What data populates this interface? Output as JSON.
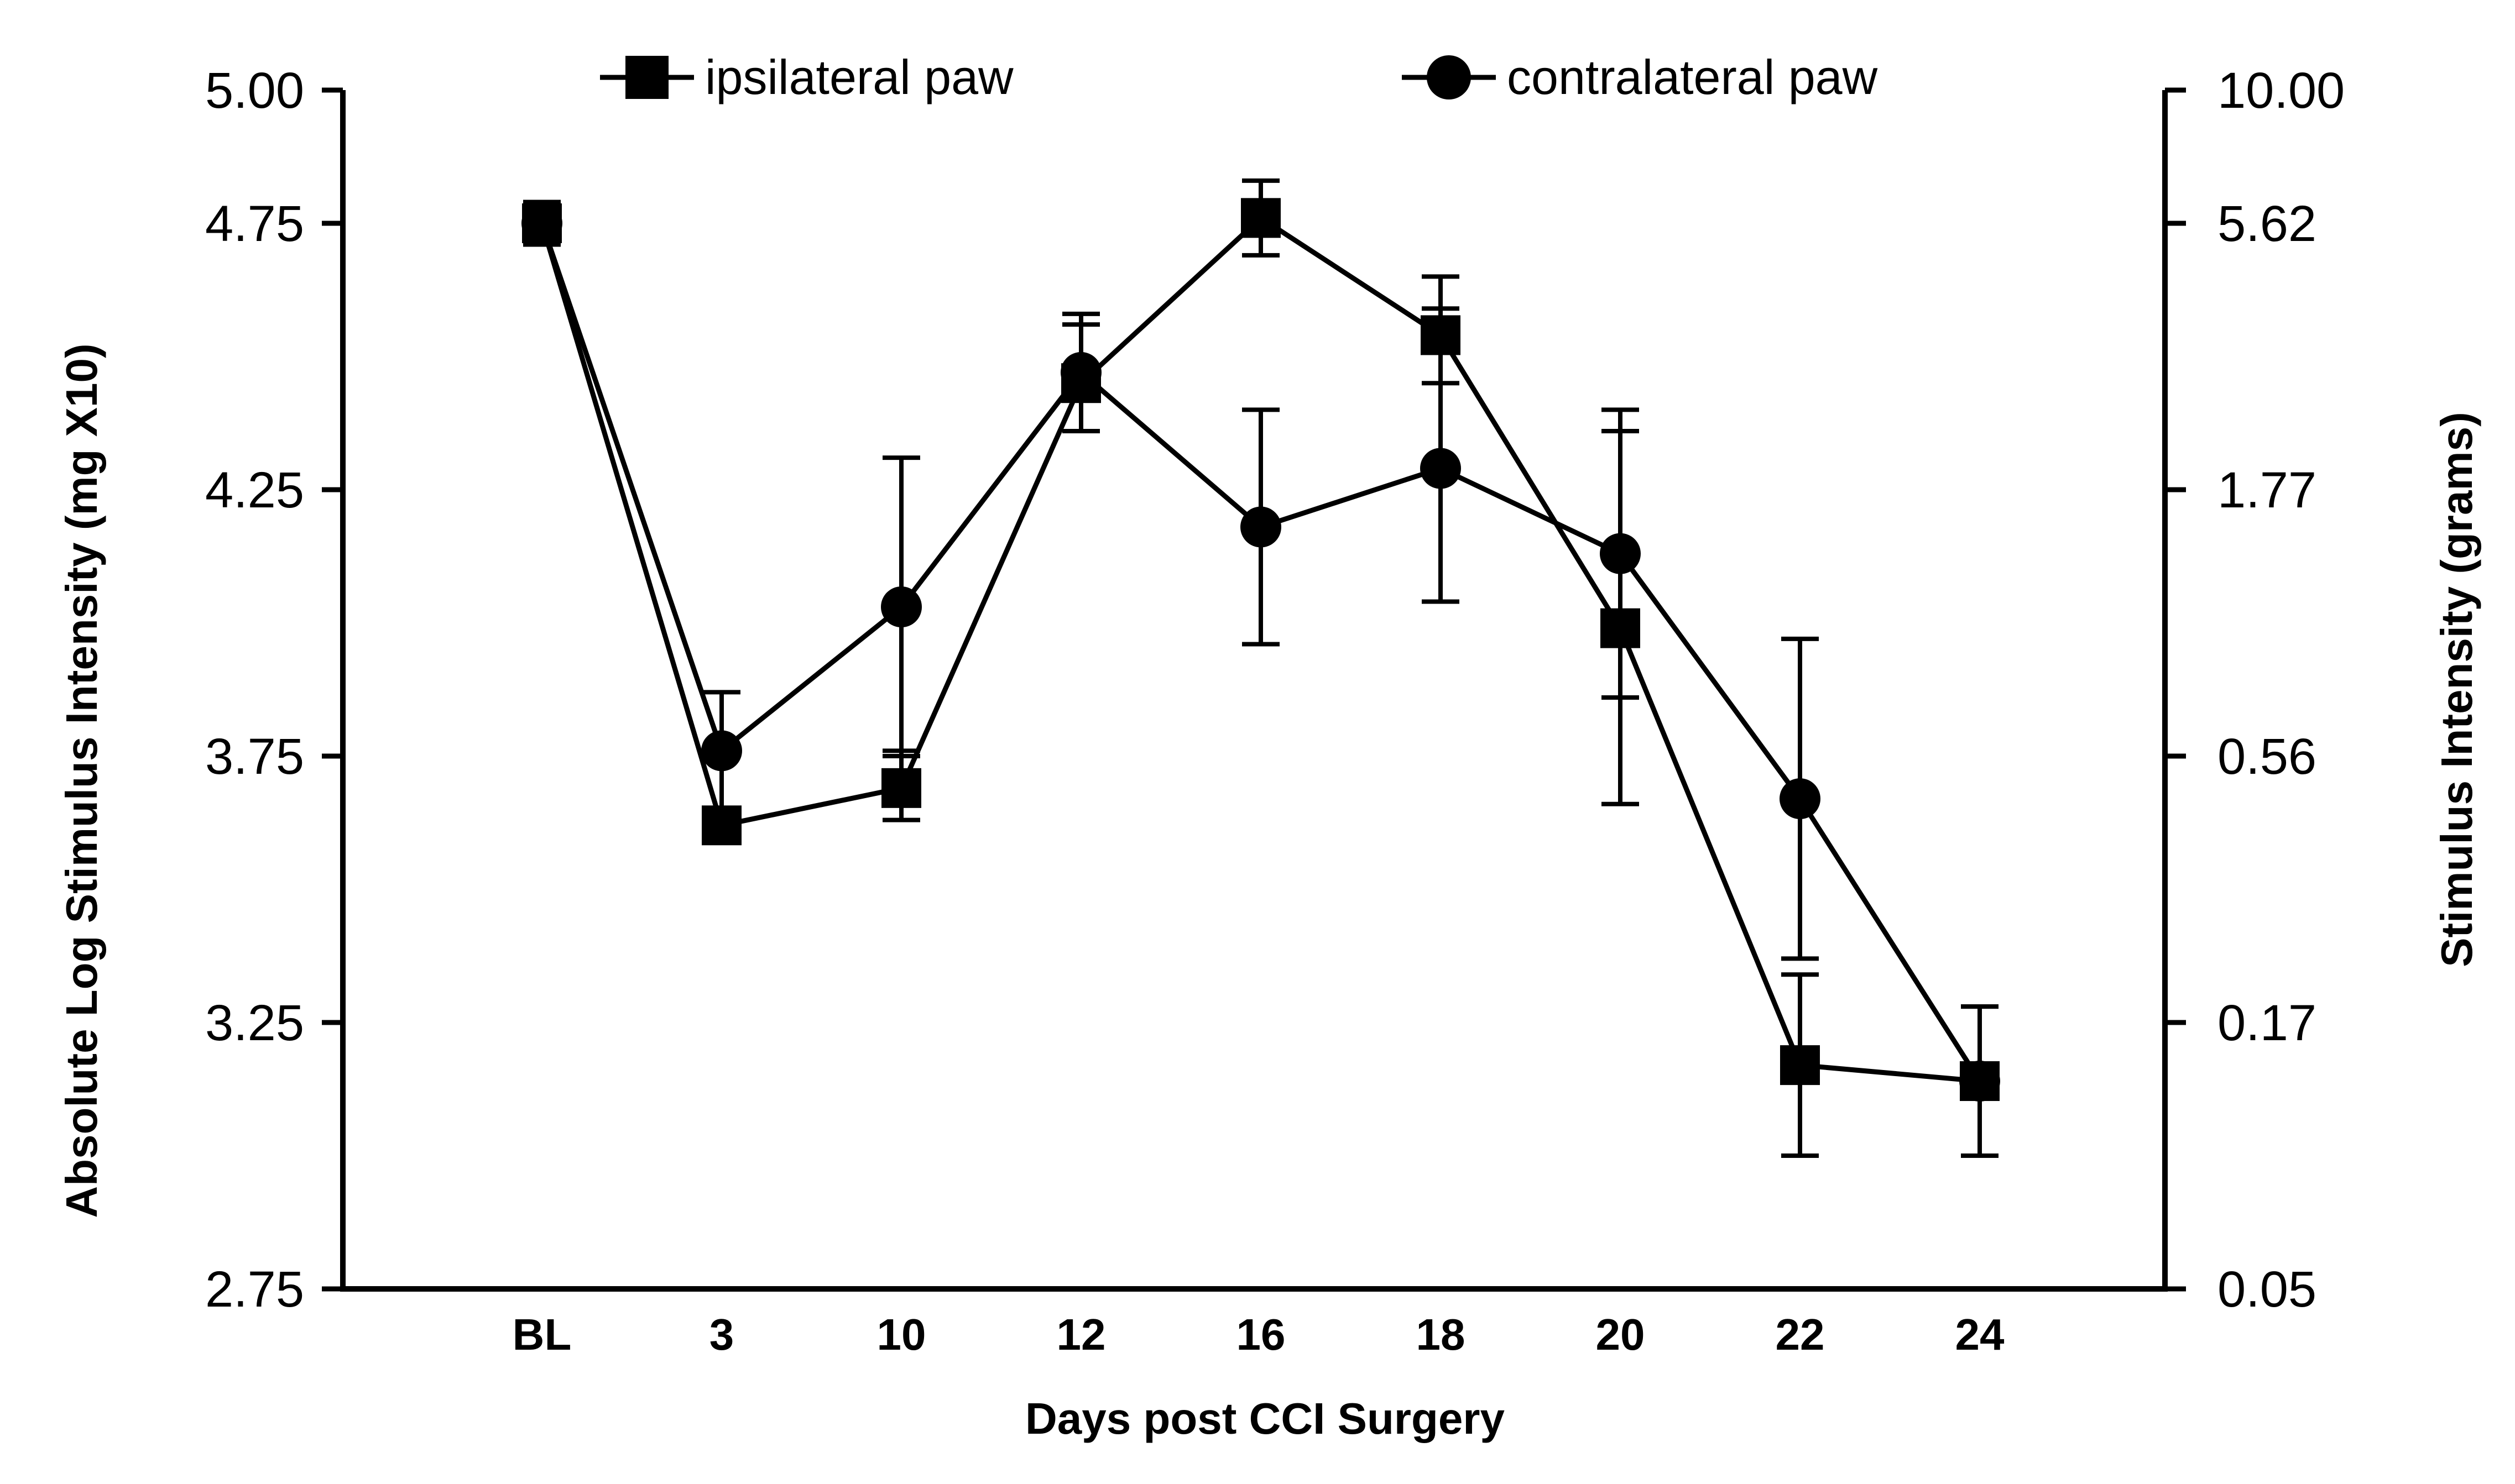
{
  "chart_data": {
    "type": "line",
    "xlabel": "Days post CCI Surgery",
    "ylabel": "Absolute Log Stimulus Intensity (mg X10)",
    "y2label": "Stimulus Intensity (grams)",
    "categories": [
      "BL",
      "3",
      "10",
      "12",
      "16",
      "18",
      "20",
      "22",
      "24"
    ],
    "ylim": [
      2.75,
      5.0
    ],
    "yticks": [
      "2.75",
      "3.25",
      "3.75",
      "4.25",
      "4.75",
      "5.00"
    ],
    "yticks_values": [
      2.75,
      3.25,
      3.75,
      4.25,
      4.75,
      5.0
    ],
    "y2ticks": [
      "0.05",
      "0.17",
      "0.56",
      "1.77",
      "5.62",
      "10.00"
    ],
    "grid": false,
    "legend_position": "top",
    "series": [
      {
        "name": "ipsilateral paw",
        "marker": "square",
        "values": [
          4.75,
          3.62,
          3.69,
          4.45,
          4.76,
          4.54,
          3.99,
          3.17,
          3.14
        ],
        "err_upper": [
          0.04,
          0.03,
          0.07,
          0.11,
          0.07,
          0.11,
          0.37,
          0.17,
          0.14
        ],
        "err_lower": [
          0.04,
          0.03,
          0.06,
          0.09,
          0.07,
          0.09,
          0.33,
          0.17,
          0.14
        ]
      },
      {
        "name": "contralateral paw",
        "marker": "circle",
        "values": [
          4.75,
          3.76,
          4.03,
          4.47,
          4.18,
          4.29,
          4.13,
          3.67,
          3.14
        ],
        "err_upper": [
          0.04,
          0.11,
          0.28,
          0.11,
          0.22,
          0.3,
          0.27,
          0.3,
          0.14
        ],
        "err_lower": [
          0.04,
          0.11,
          0.28,
          0.11,
          0.22,
          0.25,
          0.27,
          0.3,
          0.14
        ]
      }
    ]
  }
}
